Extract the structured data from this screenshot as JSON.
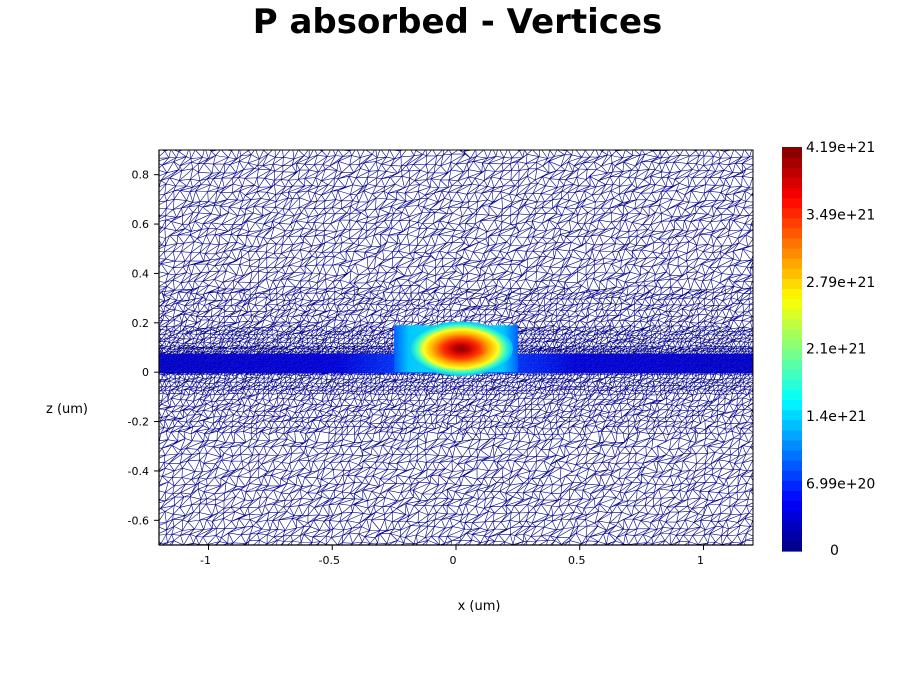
{
  "chart_data": {
    "type": "heatmap",
    "title": "P absorbed - Vertices",
    "xlabel": "x (um)",
    "ylabel": "z (um)",
    "xlim": [
      -1.2,
      1.2
    ],
    "ylim": [
      -0.7,
      0.9
    ],
    "x_ticks": [
      {
        "v": -1,
        "label": "-1"
      },
      {
        "v": -0.5,
        "label": "-0.5"
      },
      {
        "v": 0,
        "label": "0"
      },
      {
        "v": 0.5,
        "label": "0.5"
      },
      {
        "v": 1,
        "label": "1"
      }
    ],
    "y_ticks": [
      {
        "v": 0.8,
        "label": "0.8"
      },
      {
        "v": 0.6,
        "label": "0.6"
      },
      {
        "v": 0.4,
        "label": "0.4"
      },
      {
        "v": 0.2,
        "label": "0.2"
      },
      {
        "v": 0,
        "label": "0"
      },
      {
        "v": -0.2,
        "label": "-0.2"
      },
      {
        "v": -0.4,
        "label": "-0.4"
      },
      {
        "v": -0.6,
        "label": "-0.6"
      }
    ],
    "colorbar": {
      "colormap": "jet",
      "min": 0,
      "max": 4.19e+21,
      "labels": [
        {
          "v": 4.19e+21,
          "label": "4.19e+21"
        },
        {
          "v": 3.49e+21,
          "label": "3.49e+21"
        },
        {
          "v": 2.79e+21,
          "label": "2.79e+21"
        },
        {
          "v": 2.1e+21,
          "label": "2.1e+21"
        },
        {
          "v": 1.4e+21,
          "label": "1.4e+21"
        },
        {
          "v": 6.99e+20,
          "label": "6.99e+20"
        },
        {
          "v": 0,
          "label": "0"
        }
      ]
    },
    "regions": {
      "substrate_layer_z": [
        -0.005,
        0.075
      ],
      "ridge": {
        "x": [
          -0.25,
          0.25
        ],
        "z": [
          0.0,
          0.19
        ]
      },
      "hotspot": {
        "x": 0.02,
        "z": 0.095,
        "peak": 4.19e+21
      }
    },
    "mesh_color": "#00008b",
    "background_color": "#ffffff"
  }
}
